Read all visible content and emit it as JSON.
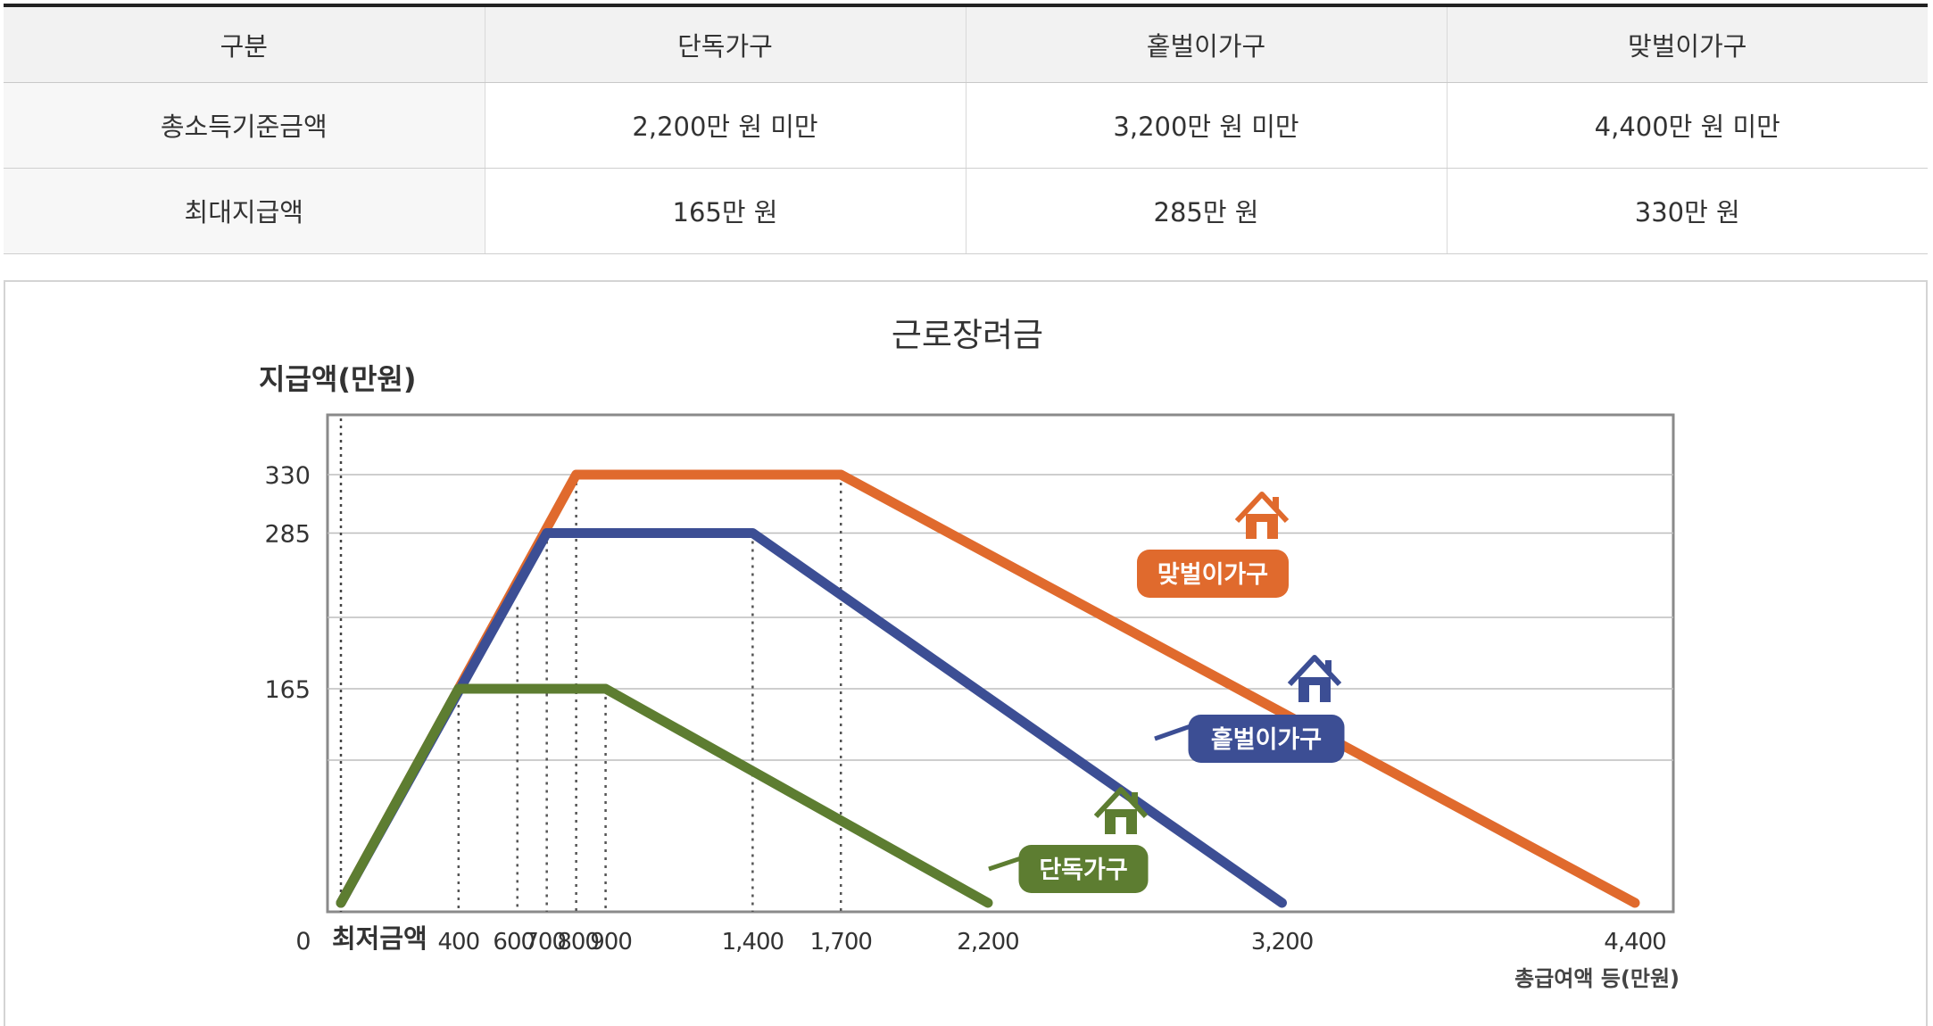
{
  "table": {
    "headers": [
      "구분",
      "단독가구",
      "홑벌이가구",
      "맞벌이가구"
    ],
    "rows": [
      [
        "총소득기준금액",
        "2,200만 원 미만",
        "3,200만 원 미만",
        "4,400만 원 미만"
      ],
      [
        "최대지급액",
        "165만 원",
        "285만 원",
        "330만 원"
      ]
    ]
  },
  "chart_data": {
    "type": "line",
    "title": "근로장려금",
    "ylabel": "지급액(만원)",
    "xlabel": "총급여액 등(만원)",
    "x_start_label": "최저금액",
    "y_zero_label": "0",
    "xlim": [
      0,
      4400
    ],
    "ylim": [
      0,
      330
    ],
    "x_ticks": [
      {
        "value": 400,
        "label": "400"
      },
      {
        "value": 600,
        "label": "600"
      },
      {
        "value": 700,
        "label": "700"
      },
      {
        "value": 800,
        "label": "800"
      },
      {
        "value": 900,
        "label": "900"
      },
      {
        "value": 1400,
        "label": "1,400"
      },
      {
        "value": 1700,
        "label": "1,700"
      },
      {
        "value": 2200,
        "label": "2,200"
      },
      {
        "value": 3200,
        "label": "3,200"
      },
      {
        "value": 4400,
        "label": "4,400"
      }
    ],
    "y_ticks": [
      {
        "value": 165,
        "label": "165"
      },
      {
        "value": 285,
        "label": "285"
      },
      {
        "value": 330,
        "label": "330"
      }
    ],
    "grid": true,
    "series": [
      {
        "name": "맞벌이가구",
        "color": "#e06a2d",
        "points": [
          [
            0,
            0
          ],
          [
            800,
            330
          ],
          [
            1700,
            330
          ],
          [
            4400,
            0
          ]
        ]
      },
      {
        "name": "홑벌이가구",
        "color": "#3c4e94",
        "points": [
          [
            0,
            0
          ],
          [
            700,
            285
          ],
          [
            1400,
            285
          ],
          [
            3200,
            0
          ]
        ]
      },
      {
        "name": "단독가구",
        "color": "#5d7d31",
        "points": [
          [
            0,
            0
          ],
          [
            400,
            165
          ],
          [
            900,
            165
          ],
          [
            2200,
            0
          ]
        ]
      }
    ]
  },
  "colors": {
    "dual_income": "#e06a2d",
    "single_earner": "#3c4e94",
    "single_person": "#5d7d31"
  }
}
